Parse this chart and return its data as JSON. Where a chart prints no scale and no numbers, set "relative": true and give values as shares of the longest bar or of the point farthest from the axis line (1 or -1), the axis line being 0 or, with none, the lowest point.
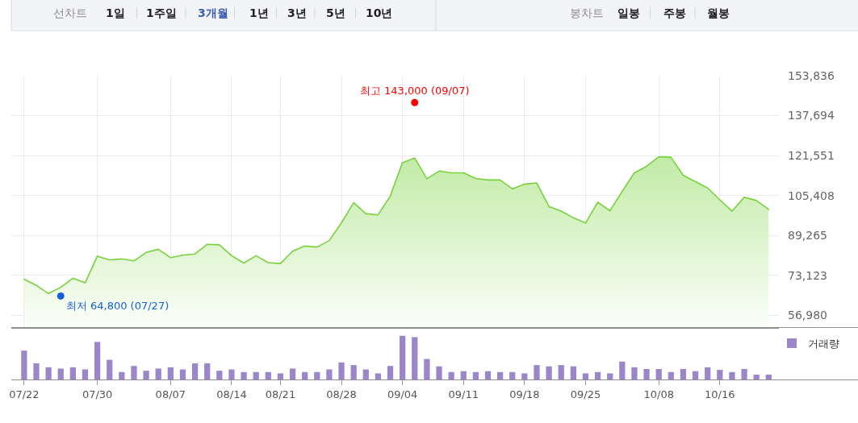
{
  "chart_data": [
    {
      "type": "other",
      "annotations": [
        "선차트",
        "1일",
        "1주일",
        "3개월",
        "1년",
        "3년",
        "5년",
        "10년",
        "봉차트",
        "일봉",
        "주봉",
        "월봉"
      ]
    },
    {
      "type": "area",
      "categories": [
        "07/22",
        null,
        null,
        null,
        null,
        null,
        "07/30",
        null,
        null,
        null,
        null,
        null,
        "08/07",
        null,
        null,
        null,
        null,
        "08/14",
        null,
        null,
        null,
        "08/21",
        null,
        null,
        null,
        null,
        "08/28",
        null,
        null,
        null,
        null,
        "09/04",
        null,
        null,
        null,
        null,
        "09/11",
        null,
        null,
        null,
        null,
        "09/18",
        null,
        null,
        null,
        null,
        "09/25",
        null,
        null,
        null,
        null,
        null,
        "10/08",
        null,
        null,
        null,
        null,
        "10/16",
        null,
        null,
        null,
        null
      ],
      "series": [
        {
          "color": "#78d23c",
          "values": [
            71600,
            69100,
            65800,
            68300,
            72000,
            70100,
            80900,
            79400,
            79800,
            79000,
            82400,
            83700,
            80300,
            81300,
            81800,
            85700,
            85500,
            81100,
            78100,
            81100,
            78300,
            77900,
            82900,
            85000,
            84600,
            87200,
            94400,
            102500,
            98100,
            97600,
            105200,
            118700,
            120600,
            112200,
            115300,
            114600,
            114600,
            112300,
            111700,
            111700,
            108100,
            110000,
            110500,
            101000,
            99100,
            96400,
            94300,
            102700,
            99200,
            107100,
            114600,
            117200,
            121100,
            120900,
            113600,
            111000,
            108500,
            103700,
            99100,
            104700,
            103400,
            99800
          ]
        },
        {
          "type": "scatter",
          "name": "최고 143,000 (09/07)",
          "color": "#ff0000",
          "marker": "circle",
          "values": [
            null,
            null,
            null,
            null,
            null,
            null,
            null,
            null,
            null,
            null,
            null,
            null,
            null,
            null,
            null,
            null,
            null,
            null,
            null,
            null,
            null,
            null,
            null,
            null,
            null,
            null,
            null,
            null,
            null,
            null,
            null,
            null,
            143000,
            null,
            null,
            null,
            null,
            null,
            null,
            null,
            null,
            null,
            null,
            null,
            null,
            null,
            null,
            null,
            null,
            null,
            null,
            null,
            null,
            null,
            null,
            null,
            null,
            null,
            null,
            null,
            null,
            null
          ]
        },
        {
          "type": "scatter",
          "name": "최저 64,800 (07/27)",
          "color": "#1a5fd6",
          "marker": "circle",
          "values": [
            null,
            null,
            null,
            64800,
            null,
            null,
            null,
            null,
            null,
            null,
            null,
            null,
            null,
            null,
            null,
            null,
            null,
            null,
            null,
            null,
            null,
            null,
            null,
            null,
            null,
            null,
            null,
            null,
            null,
            null,
            null,
            null,
            null,
            null,
            null,
            null,
            null,
            null,
            null,
            null,
            null,
            null,
            null,
            null,
            null,
            null,
            null,
            null,
            null,
            null,
            null,
            null,
            null,
            null,
            null,
            null,
            null,
            null,
            null,
            null,
            null,
            null
          ]
        }
      ],
      "ylim": [
        51900,
        153836
      ],
      "yticks": [
        {
          "value": 56980,
          "label": "56,980"
        },
        {
          "value": 73123,
          "label": "73,123"
        },
        {
          "value": 89265,
          "label": "89,265"
        },
        {
          "value": 105408,
          "label": "105,408"
        },
        {
          "value": 121551,
          "label": "121,551"
        },
        {
          "value": 137694,
          "label": "137,694"
        },
        {
          "value": 153836,
          "label": "153,836"
        }
      ],
      "grid": true,
      "tick_labels": "y"
    },
    {
      "type": "bar",
      "categories": [
        "07/22",
        null,
        null,
        null,
        null,
        null,
        "07/30",
        null,
        null,
        null,
        null,
        null,
        "08/07",
        null,
        null,
        null,
        null,
        "08/14",
        null,
        null,
        null,
        "08/21",
        null,
        null,
        null,
        null,
        "08/28",
        null,
        null,
        null,
        null,
        "09/04",
        null,
        null,
        null,
        null,
        "09/11",
        null,
        null,
        null,
        null,
        "09/18",
        null,
        null,
        null,
        null,
        "09/25",
        null,
        null,
        null,
        null,
        null,
        "10/08",
        null,
        null,
        null,
        null,
        "10/16",
        null,
        null,
        null,
        null
      ],
      "series": [
        {
          "name": "거래량",
          "color": "#9a86c8",
          "values": [
            0.66,
            0.37,
            0.28,
            0.25,
            0.28,
            0.23,
            0.86,
            0.45,
            0.17,
            0.31,
            0.2,
            0.25,
            0.28,
            0.23,
            0.37,
            0.37,
            0.2,
            0.23,
            0.17,
            0.17,
            0.17,
            0.14,
            0.25,
            0.17,
            0.17,
            0.23,
            0.39,
            0.33,
            0.23,
            0.14,
            0.31,
            1,
            0.97,
            0.47,
            0.3,
            0.17,
            0.19,
            0.17,
            0.19,
            0.17,
            0.17,
            0.14,
            0.33,
            0.3,
            0.33,
            0.3,
            0.14,
            0.17,
            0.14,
            0.41,
            0.28,
            0.24,
            0.24,
            0.17,
            0.24,
            0.19,
            0.28,
            0.22,
            0.17,
            0.24,
            0.11,
            0.11
          ]
        }
      ],
      "relative": true,
      "legend": "top right",
      "tick_labels": "x"
    }
  ]
}
